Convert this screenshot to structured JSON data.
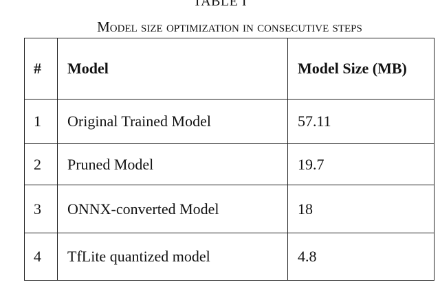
{
  "table": {
    "label": "TABLE I",
    "caption": "Model size optimization in consecutive steps",
    "header": [
      "#",
      "Model",
      "Model Size (MB)"
    ],
    "rows": [
      [
        "1",
        "Original Trained Model",
        "57.11"
      ],
      [
        "2",
        "Pruned Model",
        "19.7"
      ],
      [
        "3",
        "ONNX-converted Model",
        "18"
      ],
      [
        "4",
        "TfLite quantized model",
        "4.8"
      ]
    ]
  }
}
